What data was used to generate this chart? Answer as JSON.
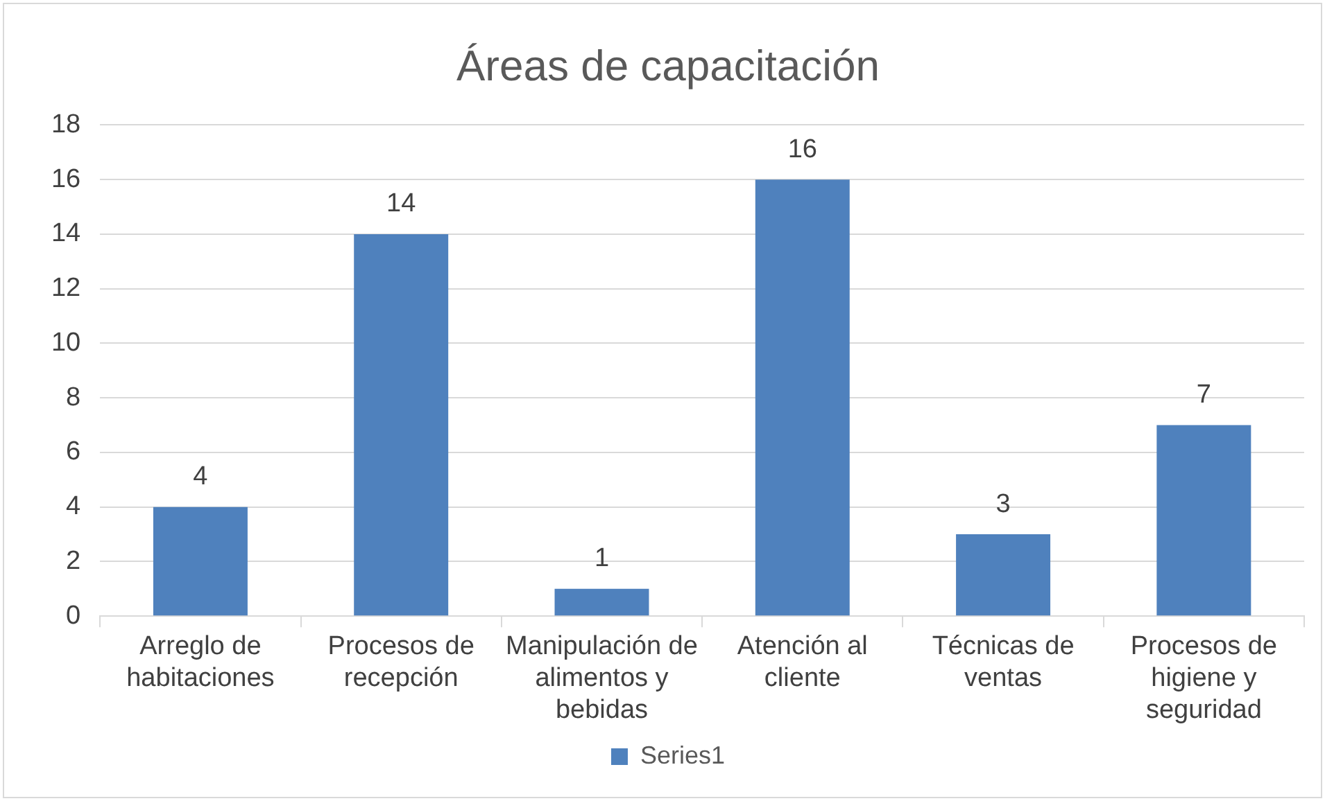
{
  "chart_data": {
    "type": "bar",
    "title": "Áreas de capacitación",
    "categories": [
      "Arreglo de habitaciones",
      "Procesos de recepción",
      "Manipulación de alimentos y bebidas",
      "Atención al cliente",
      "Técnicas de ventas",
      "Procesos de higiene y seguridad"
    ],
    "series": [
      {
        "name": "Series1",
        "color": "#4f81bd",
        "values": [
          4,
          14,
          1,
          16,
          3,
          7
        ]
      }
    ],
    "ylim": [
      0,
      18
    ],
    "yticks": [
      0,
      2,
      4,
      6,
      8,
      10,
      12,
      14,
      16,
      18
    ],
    "grid": "y",
    "legend": "bottom",
    "data_labels": true
  }
}
